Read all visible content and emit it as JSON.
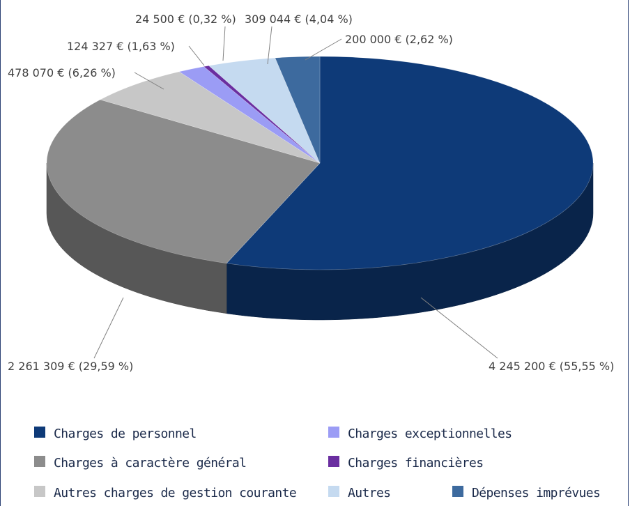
{
  "chart_data": {
    "type": "pie",
    "style": "3d",
    "slices": [
      {
        "name": "Charges de personnel",
        "value": 4245200,
        "percent": 55.55,
        "label": "4 245 200 € (55,55 %)",
        "color": "#0e3a78"
      },
      {
        "name": "Charges à caractère général",
        "value": 2261309,
        "percent": 29.59,
        "label": "2 261 309 € (29,59 %)",
        "color": "#8c8c8c"
      },
      {
        "name": "Autres charges de gestion courante",
        "value": 478070,
        "percent": 6.26,
        "label": "478 070 € (6,26 %)",
        "color": "#c7c7c7"
      },
      {
        "name": "Charges exceptionnelles",
        "value": 124327,
        "percent": 1.63,
        "label": "124 327 € (1,63 %)",
        "color": "#9b9cf5"
      },
      {
        "name": "Charges financières",
        "value": 24500,
        "percent": 0.32,
        "label": "24 500 € (0,32 %)",
        "color": "#6a2ea0"
      },
      {
        "name": "Autres",
        "value": 309044,
        "percent": 4.04,
        "label": "309 044 € (4,04 %)",
        "color": "#c5daf0"
      },
      {
        "name": "Dépenses imprévues",
        "value": 200000,
        "percent": 2.62,
        "label": "200 000 € (2,62 %)",
        "color": "#3d6a9e"
      }
    ],
    "legend": {
      "placement": "bottom",
      "items": [
        "Charges de personnel",
        "Charges exceptionnelles",
        "Charges à caractère général",
        "Charges financières",
        "Autres charges de gestion courante",
        "Autres",
        "Dépenses imprévues"
      ]
    }
  }
}
